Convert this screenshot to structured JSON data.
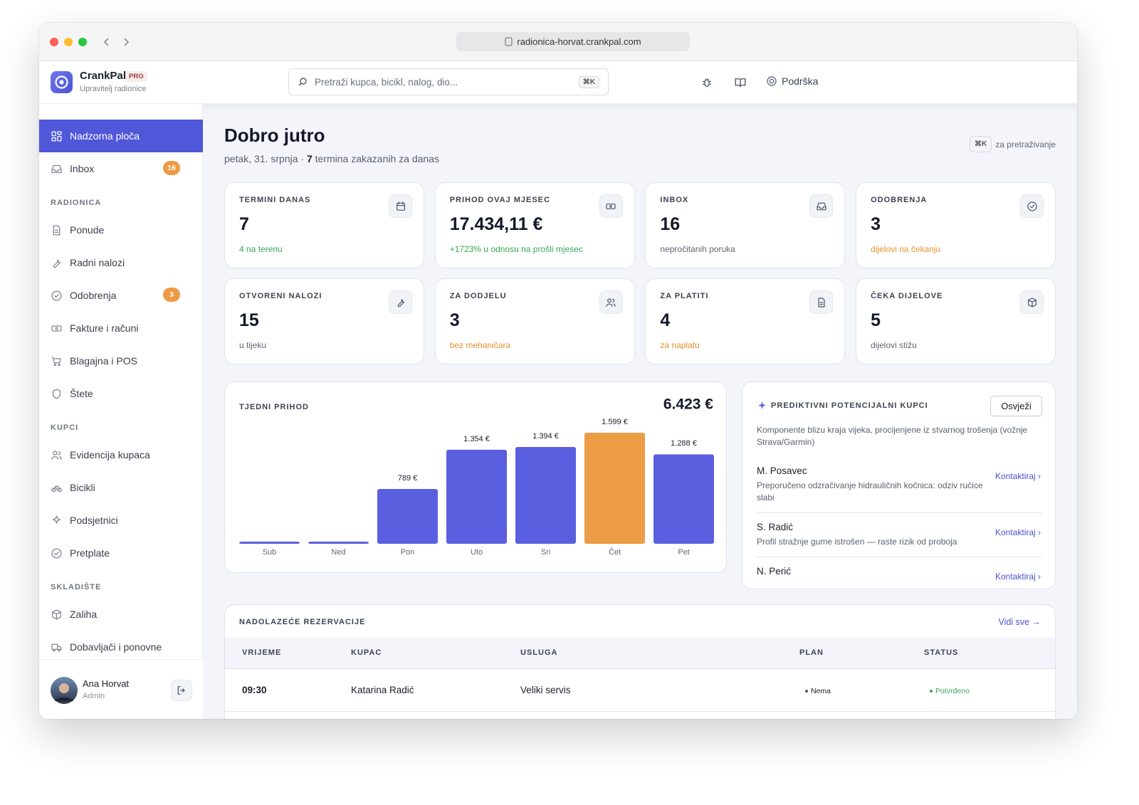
{
  "browser": {
    "url": "radionica-horvat.crankpal.com"
  },
  "app": {
    "name": "CrankPal",
    "plan": "PRO",
    "subtitle": "Upravitelj radionice"
  },
  "search": {
    "placeholder": "Pretraži kupca, bicikl, nalog, dio...",
    "shortcut": "⌘K"
  },
  "header_actions": {
    "support": "Podrška"
  },
  "sidebar": {
    "main": [
      {
        "label": "Nadzorna ploča"
      },
      {
        "label": "Inbox",
        "badge": 16
      }
    ],
    "sections": [
      {
        "title": "RADIONICA",
        "items": [
          {
            "label": "Ponude"
          },
          {
            "label": "Radni nalozi"
          },
          {
            "label": "Odobrenja",
            "badge": 3
          },
          {
            "label": "Fakture i računi"
          },
          {
            "label": "Blagajna i POS"
          },
          {
            "label": "Štete"
          }
        ]
      },
      {
        "title": "KUPCI",
        "items": [
          {
            "label": "Evidencija kupaca"
          },
          {
            "label": "Bicikli"
          },
          {
            "label": "Podsjetnici"
          },
          {
            "label": "Pretplate"
          }
        ]
      },
      {
        "title": "SKLADIŠTE",
        "items": [
          {
            "label": "Zaliha"
          },
          {
            "label": "Dobavljači i ponovne"
          }
        ]
      }
    ],
    "user": {
      "name": "Ana Horvat",
      "role": "Admin"
    }
  },
  "page": {
    "title": "Dobro jutro",
    "date": "petak, 31. srpnja ·",
    "count": 7,
    "count_text": "termina zakazanih za danas",
    "shortcut": "⌘K",
    "shortcut_text": "za pretraživanje"
  },
  "stats": [
    {
      "label": "TERMINI DANAS",
      "value": 7,
      "note": "4 na terenu",
      "note_color": "#3aa655"
    },
    {
      "label": "PRIHOD OVAJ MJESEC",
      "value": "17.434,11 €",
      "note": "+1723% u odnosu na prošli mjesec",
      "note_color": "#3aa655"
    },
    {
      "label": "INBOX",
      "value": 16,
      "note": "nepročitanih poruka",
      "note_color": "#5f6675"
    },
    {
      "label": "ODOBRENJA",
      "value": 3,
      "note": "dijelovi na čekanju",
      "note_color": "#e8912e"
    },
    {
      "label": "OTVORENI NALOZI",
      "value": 15,
      "note": "u tijeku",
      "note_color": "#5f6675"
    },
    {
      "label": "ZA DODJELU",
      "value": 3,
      "note": "bez mehaničara",
      "note_color": "#e8912e"
    },
    {
      "label": "ZA PLATITI",
      "value": 4,
      "note": "za naplatu",
      "note_color": "#e8912e"
    },
    {
      "label": "ČEKA DIJELOVE",
      "value": 5,
      "note": "dijelovi stižu",
      "note_color": "#5f6675"
    }
  ],
  "chart_data": {
    "type": "bar",
    "title": "TJEDNI PRIHOD",
    "total": "6.423 €",
    "categories": [
      "Sub",
      "Ned",
      "Pon",
      "Uto",
      "Sri",
      "Čet",
      "Pet"
    ],
    "values": [
      0,
      0,
      789,
      1354,
      1394,
      1599,
      1288
    ],
    "value_labels": [
      null,
      null,
      "789 €",
      "1.354 €",
      "1.394 €",
      "1.599 €",
      "1.288 €"
    ],
    "colors": [
      "#5a5fe0",
      "#5a5fe0",
      "#5a5fe0",
      "#5a5fe0",
      "#5a5fe0",
      "#ec9c45",
      "#5a5fe0"
    ]
  },
  "predictive": {
    "title": "PREDIKTIVNI POTENCIJALNI KUPCI",
    "button": "Osvježi",
    "description": "Komponente blizu kraja vijeka, procijenjene iz stvarnog trošenja (vožnje Strava/Garmin)",
    "leads": [
      {
        "name": "M. Posavec",
        "note": "Preporučeno odzračivanje hidrauličnih kočnica: odziv ručice slabi",
        "action": "Kontaktiraj ›"
      },
      {
        "name": "S. Radić",
        "note": "Profil stražnje gume istrošen — raste rizik od proboja",
        "action": "Kontaktiraj ›"
      },
      {
        "name": "N. Perić",
        "action": "Kontaktiraj ›"
      }
    ]
  },
  "reservations": {
    "title": "NADOLAZEĆE REZERVACIJE",
    "link": "Vidi sve →",
    "columns": [
      "VRIJEME",
      "KUPAC",
      "USLUGA",
      "PLAN",
      "STATUS"
    ],
    "rows": [
      [
        "09:30",
        "Katarina Radić",
        "Veliki servis",
        "Nema",
        "Potvrđeno"
      ]
    ]
  }
}
